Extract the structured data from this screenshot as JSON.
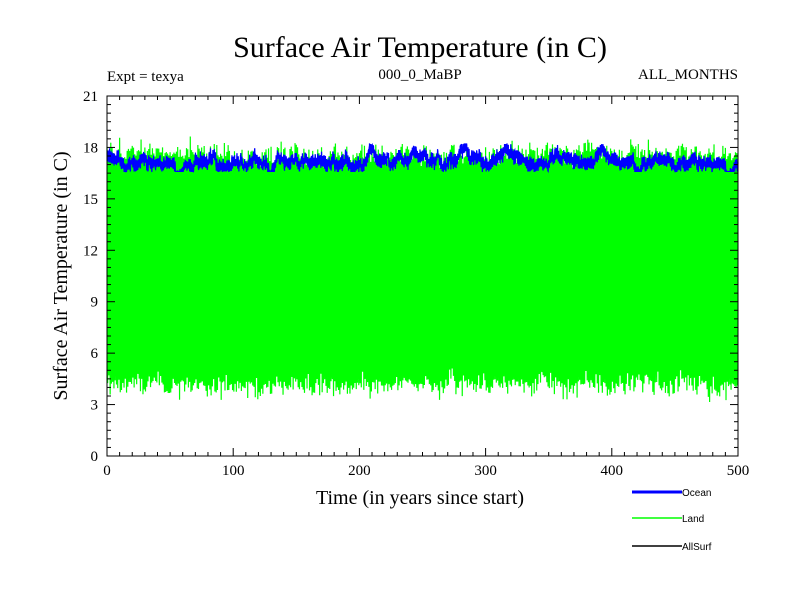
{
  "chart_data": {
    "type": "line",
    "title": "Surface Air Temperature (in C)",
    "subtitle_left": "Expt = texya",
    "subtitle_center": "000_0_MaBP",
    "subtitle_right": "ALL_MONTHS",
    "xlabel": "Time (in years since start)",
    "ylabel": "Surface Air Temperature (in C)",
    "xlim": [
      0,
      500
    ],
    "ylim": [
      0,
      21
    ],
    "xticks": [
      0,
      100,
      200,
      300,
      400,
      500
    ],
    "yticks": [
      0,
      3,
      6,
      9,
      12,
      15,
      18,
      21
    ],
    "grid": false,
    "legend_position": "bottom-right, below plot",
    "series": [
      {
        "name": "Ocean",
        "color": "#0000ff",
        "mean_y": 17.35,
        "envelope_y": [
          16.6,
          18.2
        ]
      },
      {
        "name": "Land",
        "color": "#00ff00",
        "mean_y": 11.0,
        "envelope_y": [
          2.3,
          19.6
        ]
      },
      {
        "name": "AllSurf",
        "color": "#000000"
      }
    ]
  }
}
